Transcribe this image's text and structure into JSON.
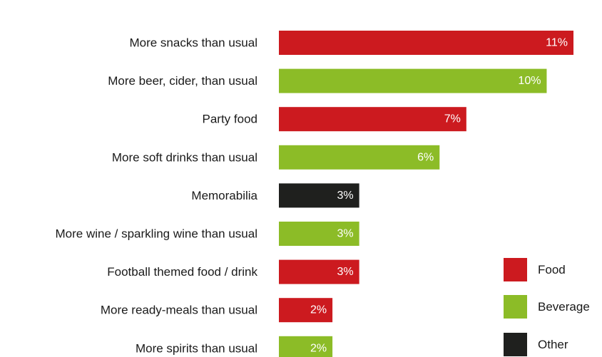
{
  "chart_data": {
    "type": "bar",
    "orientation": "horizontal",
    "categories": [
      "More snacks than usual",
      "More beer, cider, than usual",
      "Party food",
      "More soft drinks than usual",
      "Memorabilia",
      "More wine / sparkling wine than usual",
      "Football themed food / drink",
      "More ready-meals than usual",
      "More spirits than usual"
    ],
    "values": [
      11,
      10,
      7,
      6,
      3,
      3,
      3,
      2,
      2
    ],
    "value_labels": [
      "11%",
      "10%",
      "7%",
      "6%",
      "3%",
      "3%",
      "3%",
      "2%",
      "2%"
    ],
    "groups": [
      "Food",
      "Beverage",
      "Food",
      "Beverage",
      "Other",
      "Beverage",
      "Food",
      "Food",
      "Beverage"
    ],
    "unit": "%",
    "xlim": [
      0,
      11
    ],
    "grid": false,
    "legend_position": "bottom-right",
    "legend": [
      {
        "name": "Food",
        "color": "#cc1a1f"
      },
      {
        "name": "Beverage",
        "color": "#8cbc27"
      },
      {
        "name": "Other",
        "color": "#1f201e"
      }
    ]
  }
}
